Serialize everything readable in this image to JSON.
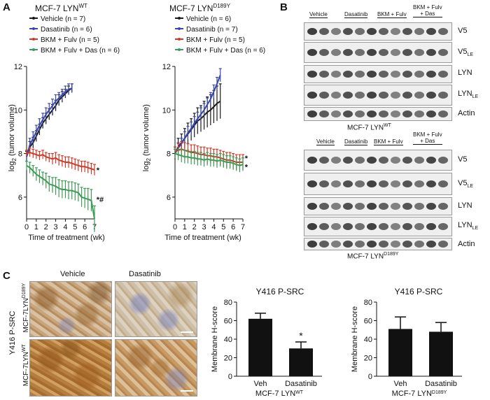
{
  "panels": {
    "a": "A",
    "b": "B",
    "c": "C"
  },
  "panel_a": {
    "left_title": "MCF-7 LYN",
    "left_title_sup": "WT",
    "right_title": "MCF-7 LYN",
    "right_title_sup": "D189Y",
    "ylabel": "log2 (tumor volume)",
    "ylabel_base": "log",
    "ylabel_sub": "2",
    "ylabel_rest": " (tumor volume)",
    "xlabel": "Time of treatment (wk)"
  },
  "panel_b": {
    "groups": [
      "Vehicle",
      "Dasatinib",
      "BKM + Fulv",
      "BKM + Fulv"
    ],
    "groups_line2": [
      "",
      "",
      "",
      "+ Das"
    ],
    "rows": [
      "V5",
      "V5",
      "LYN",
      "LYN",
      "Actin"
    ],
    "rows_sub": [
      "",
      "LE",
      "",
      "LE",
      ""
    ],
    "top_caption": "MCF-7 LYN",
    "top_caption_sup": "WT",
    "bottom_caption": "MCF-7 LYN",
    "bottom_caption_sup": "D189Y"
  },
  "panel_c": {
    "col_vehicle": "Vehicle",
    "col_dasatinib": "Dasatinib",
    "stain": "Y416 P-SRC",
    "row1": "MCF-7LYN",
    "row1_sup": "D189Y",
    "row2": "MCF-7LYN",
    "row2_sup": "WT"
  },
  "chart_data": [
    {
      "type": "line",
      "title": "MCF-7 LYN WT",
      "xlabel": "Time of treatment (wk)",
      "ylabel": "log2 (tumor volume)",
      "xlim": [
        0,
        7
      ],
      "ylim": [
        5,
        12
      ],
      "xticks": [
        0,
        1,
        2,
        3,
        4,
        5,
        6,
        7
      ],
      "yticks": [
        6,
        8,
        10,
        12
      ],
      "legend": [
        "Vehicle (n = 7)",
        "Dasatinib (n = 6)",
        "BKM + Fulv (n = 5)",
        "BKM + Fulv + Das (n = 6)"
      ],
      "series": [
        {
          "name": "Vehicle (n = 7)",
          "color": "#1a1a1a",
          "x": [
            0,
            0.33,
            0.67,
            1,
            1.33,
            1.67,
            2,
            2.33,
            2.67,
            3,
            3.33,
            3.67,
            4,
            4.33,
            4.67
          ],
          "y": [
            7.85,
            8.3,
            8.5,
            8.8,
            9.1,
            9.4,
            9.6,
            9.8,
            10.0,
            10.2,
            10.45,
            10.6,
            10.75,
            10.9,
            11.0
          ],
          "err": [
            0.25,
            0.25,
            0.25,
            0.25,
            0.25,
            0.25,
            0.25,
            0.25,
            0.25,
            0.25,
            0.25,
            0.25,
            0.2,
            0.2,
            0.2
          ]
        },
        {
          "name": "Dasatinib (n = 6)",
          "color": "#3b48a8",
          "x": [
            0,
            0.33,
            0.67,
            1,
            1.33,
            1.67,
            2,
            2.33,
            2.67,
            3,
            3.33,
            3.67,
            4,
            4.33,
            4.67
          ],
          "y": [
            7.85,
            8.4,
            8.7,
            9.0,
            9.3,
            9.55,
            9.8,
            10.0,
            10.2,
            10.4,
            10.55,
            10.7,
            10.85,
            10.95,
            11.0
          ],
          "err": [
            0.3,
            0.3,
            0.3,
            0.3,
            0.3,
            0.3,
            0.3,
            0.3,
            0.3,
            0.3,
            0.25,
            0.25,
            0.25,
            0.25,
            0.2
          ]
        },
        {
          "name": "BKM + Fulv (n = 5)",
          "color": "#d03a2a",
          "x": [
            0,
            0.33,
            0.67,
            1,
            1.33,
            1.67,
            2,
            2.33,
            2.67,
            3,
            3.33,
            3.67,
            4,
            4.33,
            4.67,
            5,
            5.33,
            5.67,
            6,
            6.33,
            6.67,
            7
          ],
          "y": [
            8.0,
            8.05,
            8.0,
            7.95,
            7.9,
            7.95,
            7.85,
            7.8,
            7.75,
            7.8,
            7.7,
            7.65,
            7.6,
            7.6,
            7.55,
            7.5,
            7.45,
            7.4,
            7.4,
            7.35,
            7.3,
            7.25
          ],
          "err": [
            0.15,
            0.2,
            0.2,
            0.2,
            0.2,
            0.2,
            0.2,
            0.2,
            0.25,
            0.25,
            0.25,
            0.25,
            0.25,
            0.25,
            0.25,
            0.25,
            0.25,
            0.25,
            0.25,
            0.25,
            0.25,
            0.25
          ]
        },
        {
          "name": "BKM + Fulv + Das (n = 6)",
          "color": "#3e9a55",
          "x": [
            0,
            0.33,
            0.67,
            1,
            1.33,
            1.67,
            2,
            2.33,
            2.67,
            3,
            3.33,
            3.67,
            4,
            4.33,
            4.67,
            5,
            5.33,
            5.67,
            6,
            6.33,
            6.67,
            7
          ],
          "y": [
            7.45,
            7.35,
            7.2,
            7.05,
            6.95,
            6.85,
            6.75,
            6.6,
            6.55,
            6.5,
            6.4,
            6.35,
            6.35,
            6.3,
            6.3,
            6.25,
            6.2,
            6.0,
            5.95,
            5.9,
            5.85,
            5.0
          ],
          "err": [
            0.2,
            0.25,
            0.25,
            0.3,
            0.3,
            0.3,
            0.35,
            0.35,
            0.35,
            0.4,
            0.4,
            0.4,
            0.4,
            0.4,
            0.4,
            0.4,
            0.4,
            0.45,
            0.45,
            0.5,
            0.5,
            0.6
          ]
        }
      ],
      "annotations": [
        {
          "text": "*",
          "x": 7.2,
          "y": 7.25
        },
        {
          "text": "*#",
          "x": 7.2,
          "y": 5.9
        }
      ]
    },
    {
      "type": "line",
      "title": "MCF-7 LYN D189Y",
      "xlabel": "Time of treatment (wk)",
      "ylabel": "log2 (tumor volume)",
      "xlim": [
        0,
        7
      ],
      "ylim": [
        5,
        12
      ],
      "xticks": [
        0,
        1,
        2,
        3,
        4,
        5,
        6,
        7
      ],
      "yticks": [
        6,
        8,
        10,
        12
      ],
      "legend": [
        "Vehicle (n = 6)",
        "Dasatinib (n = 7)",
        "BKM + Fulv (n = 5)",
        "BKM + Fulv + Das (n = 6)"
      ],
      "series": [
        {
          "name": "Vehicle (n = 6)",
          "color": "#1a1a1a",
          "x": [
            0,
            0.33,
            0.67,
            1,
            1.33,
            1.67,
            2,
            2.33,
            2.67,
            3,
            3.33,
            3.67,
            4,
            4.33,
            4.67
          ],
          "y": [
            8.0,
            8.3,
            8.5,
            8.7,
            8.9,
            9.1,
            9.3,
            9.5,
            9.6,
            9.75,
            9.9,
            10.0,
            10.15,
            10.3,
            10.4
          ],
          "err": [
            0.3,
            0.4,
            0.4,
            0.45,
            0.5,
            0.5,
            0.55,
            0.6,
            0.6,
            0.65,
            0.7,
            0.7,
            0.75,
            0.8,
            0.8
          ]
        },
        {
          "name": "Dasatinib (n = 7)",
          "color": "#3b48a8",
          "x": [
            0,
            0.33,
            0.67,
            1,
            1.33,
            1.67,
            2,
            2.33,
            2.67,
            3,
            3.33,
            3.67,
            4,
            4.33,
            4.67
          ],
          "y": [
            8.0,
            8.25,
            8.45,
            8.7,
            8.95,
            9.15,
            9.4,
            9.6,
            9.8,
            10.0,
            10.25,
            10.5,
            10.85,
            11.2,
            11.6
          ],
          "err": [
            0.2,
            0.25,
            0.25,
            0.3,
            0.3,
            0.3,
            0.3,
            0.3,
            0.3,
            0.3,
            0.3,
            0.3,
            0.3,
            0.3,
            0.3
          ]
        },
        {
          "name": "BKM + Fulv (n = 5)",
          "color": "#d03a2a",
          "x": [
            0,
            0.33,
            0.67,
            1,
            1.33,
            1.67,
            2,
            2.33,
            2.67,
            3,
            3.33,
            3.67,
            4,
            4.33,
            4.67,
            5,
            5.33,
            5.67,
            6,
            6.33,
            6.67,
            7
          ],
          "y": [
            8.1,
            8.15,
            8.2,
            8.15,
            8.1,
            8.05,
            8.05,
            8.0,
            7.95,
            7.95,
            7.9,
            7.9,
            7.85,
            7.85,
            7.8,
            7.75,
            7.7,
            7.7,
            7.65,
            7.6,
            7.6,
            7.6
          ],
          "err": [
            0.2,
            0.3,
            0.35,
            0.35,
            0.35,
            0.35,
            0.35,
            0.35,
            0.35,
            0.35,
            0.35,
            0.35,
            0.35,
            0.35,
            0.35,
            0.35,
            0.35,
            0.35,
            0.35,
            0.35,
            0.35,
            0.35
          ]
        },
        {
          "name": "BKM + Fulv + Das (n = 6)",
          "color": "#3e9a55",
          "x": [
            0,
            0.33,
            0.67,
            1,
            1.33,
            1.67,
            2,
            2.33,
            2.67,
            3,
            3.33,
            3.67,
            4,
            4.33,
            4.67,
            5,
            5.33,
            5.67,
            6,
            6.33,
            6.67,
            7
          ],
          "y": [
            8.0,
            7.95,
            7.9,
            7.85,
            7.85,
            7.8,
            7.8,
            7.75,
            7.75,
            7.7,
            7.75,
            7.7,
            7.7,
            7.65,
            7.7,
            7.65,
            7.6,
            7.6,
            7.55,
            7.5,
            7.45,
            7.5
          ],
          "err": [
            0.2,
            0.25,
            0.3,
            0.3,
            0.3,
            0.3,
            0.3,
            0.3,
            0.3,
            0.3,
            0.3,
            0.3,
            0.3,
            0.3,
            0.3,
            0.3,
            0.3,
            0.3,
            0.3,
            0.3,
            0.3,
            0.3
          ]
        }
      ],
      "annotations": [
        {
          "text": "*",
          "x": 7.2,
          "y": 7.8
        },
        {
          "text": "*",
          "x": 7.2,
          "y": 7.4
        }
      ]
    },
    {
      "type": "bar",
      "title": "Y416 P-SRC",
      "group_label": "MCF-7 LYN",
      "group_label_sup": "WT",
      "categories": [
        "Veh",
        "Dasatinib"
      ],
      "values": [
        62,
        30
      ],
      "errors": [
        6,
        7
      ],
      "ylabel": "Membrane H-score",
      "ylim": [
        0,
        80
      ],
      "yticks": [
        0,
        20,
        40,
        60,
        80
      ],
      "annotations": [
        {
          "text": "*",
          "category": "Dasatinib"
        }
      ]
    },
    {
      "type": "bar",
      "title": "Y416 P-SRC",
      "group_label": "MCF-7 LYN",
      "group_label_sup": "D189Y",
      "categories": [
        "Veh",
        "Dasatinib"
      ],
      "values": [
        51,
        48
      ],
      "errors": [
        13,
        10
      ],
      "ylabel": "Membrane H-score",
      "ylim": [
        0,
        80
      ],
      "yticks": [
        0,
        20,
        40,
        60,
        80
      ],
      "annotations": []
    }
  ]
}
